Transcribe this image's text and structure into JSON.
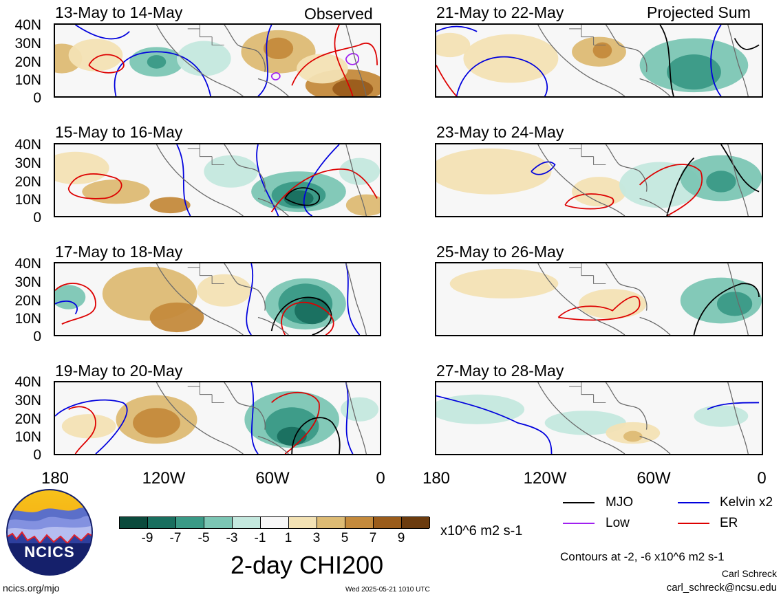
{
  "left_header": "Observed",
  "right_header": "Projected Sum",
  "panels_left": [
    {
      "title": "13-May to 14-May"
    },
    {
      "title": "15-May to 16-May"
    },
    {
      "title": "17-May to 18-May"
    },
    {
      "title": "19-May to 20-May"
    }
  ],
  "panels_right": [
    {
      "title": "21-May to 22-May"
    },
    {
      "title": "23-May to 24-May"
    },
    {
      "title": "25-May to 26-May"
    },
    {
      "title": "27-May to 28-May"
    }
  ],
  "lat_labels": [
    "40N",
    "30N",
    "20N",
    "10N",
    "0"
  ],
  "lon_labels": [
    "180",
    "120W",
    "60W",
    "0"
  ],
  "colorbar": {
    "title": "2-day CHI200",
    "units": "x10^6 m2 s-1",
    "ticks": [
      "-9",
      "-7",
      "-5",
      "-3",
      "-1",
      "1",
      "3",
      "5",
      "7",
      "9"
    ],
    "colors": [
      "#0b4a3c",
      "#196f5f",
      "#3a9a86",
      "#7cc6b4",
      "#c4e8de",
      "#f7f7f7",
      "#f3e2b4",
      "#ddbb74",
      "#c48a3c",
      "#9a5c1b",
      "#6b3b0e"
    ]
  },
  "legend": [
    {
      "label": "MJO",
      "color": "#000000"
    },
    {
      "label": "Kelvin x2",
      "color": "#0000dd"
    },
    {
      "label": "Low",
      "color": "#a020f0"
    },
    {
      "label": "ER",
      "color": "#dd0000"
    }
  ],
  "contour_note": "Contours at -2, -6 x10^6 m2 s-1",
  "author": "Carl Schreck",
  "email": "carl_schreck@ncsu.edu",
  "website": "ncics.org/mjo",
  "timestamp": "Wed 2025-05-21 1010 UTC",
  "logo": {
    "text": "NCICS"
  }
}
